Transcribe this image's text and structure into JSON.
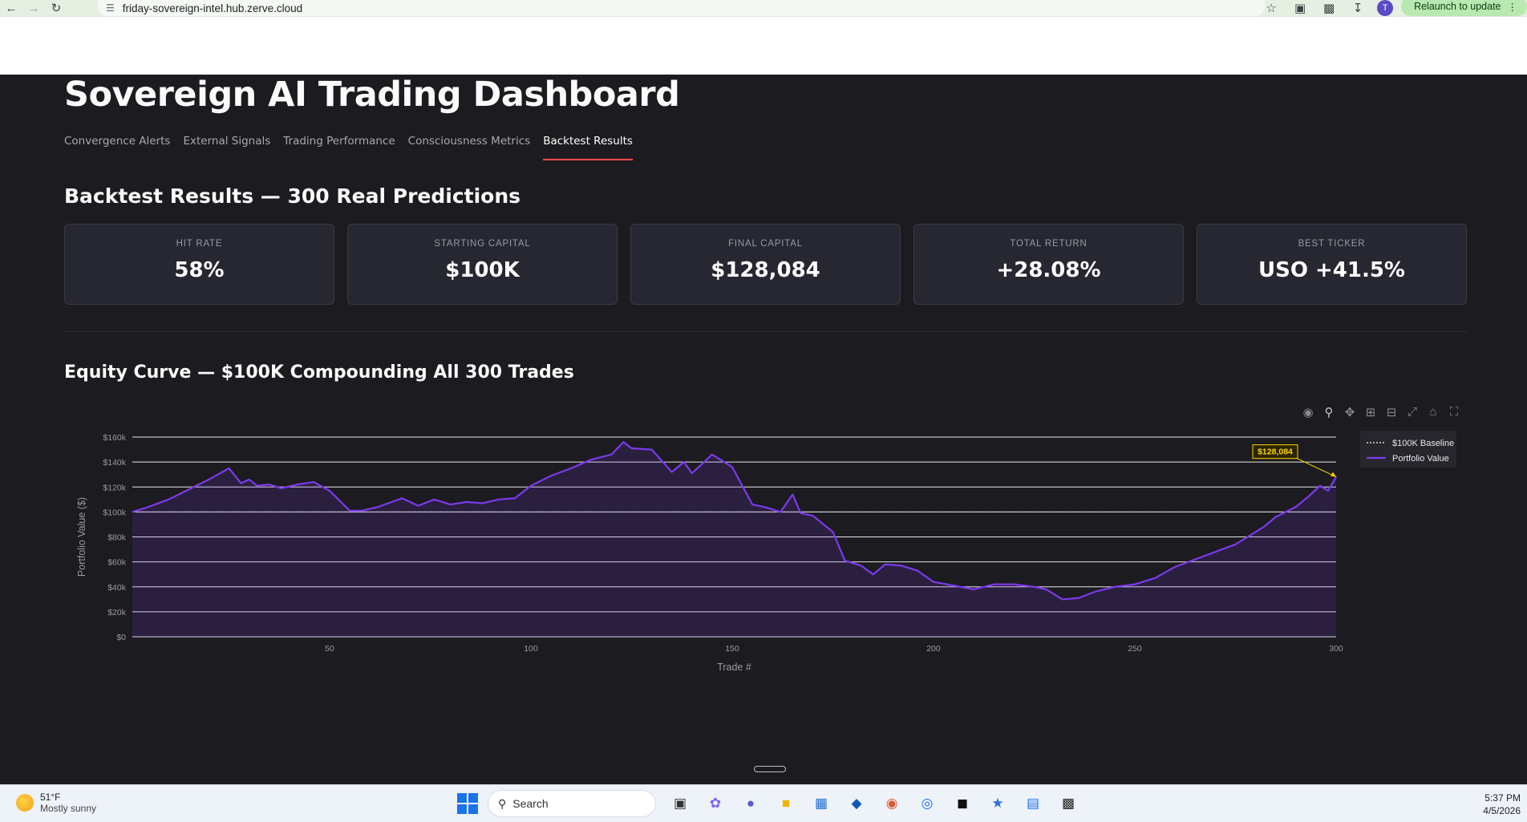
{
  "browser": {
    "url": "friday-sovereign-intel.hub.zerve.cloud",
    "profile_initial": "T",
    "relaunch_label": "Relaunch to update"
  },
  "app": {
    "title": "Sovereign AI Trading Dashboard",
    "tabs": [
      {
        "label": "Convergence Alerts",
        "active": false
      },
      {
        "label": "External Signals",
        "active": false
      },
      {
        "label": "Trading Performance",
        "active": false
      },
      {
        "label": "Consciousness Metrics",
        "active": false
      },
      {
        "label": "Backtest Results",
        "active": true
      }
    ],
    "accent_color": "#ff4b4b"
  },
  "backtest": {
    "heading": "Backtest Results — 300 Real Predictions",
    "metrics": [
      {
        "label": "HIT RATE",
        "value": "58%"
      },
      {
        "label": "STARTING CAPITAL",
        "value": "$100K"
      },
      {
        "label": "FINAL CAPITAL",
        "value": "$128,084"
      },
      {
        "label": "TOTAL RETURN",
        "value": "+28.08%"
      },
      {
        "label": "BEST TICKER",
        "value": "USO +41.5%"
      }
    ]
  },
  "equity": {
    "heading": "Equity Curve — $100K Compounding All 300 Trades",
    "toolbar_icons": [
      "camera-icon",
      "zoom-icon",
      "pan-icon",
      "zoom-in-icon",
      "zoom-out-icon",
      "autoscale-icon",
      "reset-axes-icon",
      "fullscreen-icon"
    ]
  },
  "chart_data": {
    "type": "line",
    "xlabel": "Trade #",
    "ylabel": "Portfolio Value ($)",
    "xlim": [
      1,
      300
    ],
    "ylim": [
      0,
      160000
    ],
    "x_ticks": [
      50,
      100,
      150,
      200,
      250,
      300
    ],
    "y_ticks": [
      0,
      20000,
      40000,
      60000,
      80000,
      100000,
      120000,
      140000,
      160000
    ],
    "y_tick_labels": [
      "$0",
      "$20k",
      "$40k",
      "$60k",
      "$80k",
      "$100k",
      "$120k",
      "$140k",
      "$160k"
    ],
    "grid": true,
    "legend_position": "top-right",
    "series": [
      {
        "name": "$100K Baseline",
        "style": "dotted",
        "color": "#d8d8d8",
        "x": [
          1,
          300
        ],
        "values": [
          100000,
          100000
        ]
      },
      {
        "name": "Portfolio Value",
        "style": "solid-fill",
        "color": "#7c3aed",
        "x": [
          1,
          5,
          10,
          15,
          20,
          25,
          28,
          30,
          32,
          35,
          38,
          42,
          46,
          50,
          55,
          58,
          62,
          68,
          72,
          76,
          80,
          84,
          88,
          92,
          96,
          100,
          105,
          110,
          115,
          120,
          123,
          125,
          130,
          135,
          138,
          140,
          145,
          150,
          155,
          158,
          162,
          165,
          167,
          170,
          175,
          178,
          182,
          185,
          188,
          192,
          196,
          200,
          205,
          210,
          215,
          220,
          225,
          228,
          232,
          236,
          240,
          245,
          250,
          255,
          260,
          265,
          270,
          275,
          278,
          282,
          285,
          290,
          293,
          296,
          298,
          300
        ],
        "values": [
          100000,
          104000,
          110000,
          118000,
          126000,
          135000,
          123000,
          126000,
          121000,
          122000,
          119000,
          122000,
          124000,
          117000,
          101000,
          101000,
          104000,
          111000,
          105000,
          110000,
          106000,
          108000,
          107000,
          110000,
          111000,
          121000,
          129000,
          135000,
          142000,
          146000,
          156000,
          151000,
          150000,
          132000,
          140000,
          131000,
          146000,
          136000,
          106000,
          104000,
          100000,
          114000,
          99000,
          97000,
          84000,
          61000,
          57000,
          50000,
          58000,
          57000,
          53000,
          44000,
          41000,
          38000,
          42000,
          42000,
          40000,
          38000,
          30000,
          31000,
          36000,
          40000,
          42000,
          47000,
          56000,
          62000,
          68000,
          74000,
          80000,
          88000,
          96000,
          104000,
          112000,
          121000,
          117000,
          128084
        ]
      }
    ],
    "annotation": {
      "text": "$128,084",
      "x": 300,
      "y": 128084,
      "color": "#ffd400"
    }
  },
  "taskbar": {
    "weather_temp": "51°F",
    "weather_desc": "Mostly sunny",
    "search_placeholder": "Search",
    "time": "5:37 PM",
    "date": "4/5/2026"
  }
}
